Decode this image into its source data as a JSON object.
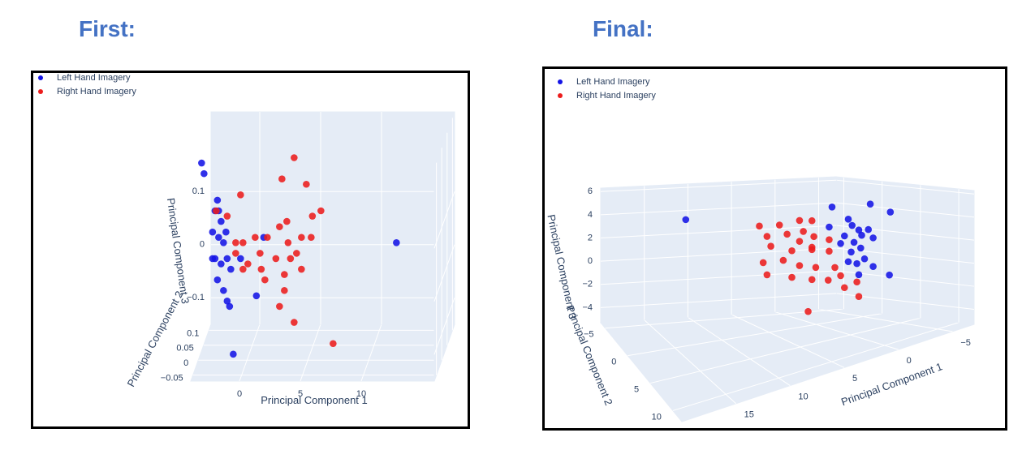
{
  "chart_data": [
    {
      "type": "scatter3d",
      "title": "First:",
      "legend": "top-left",
      "xlabel": "Principal Component 1",
      "ylabel": "Principal Component 2",
      "zlabel": "Principal Component 3",
      "xlim": [
        -4,
        16
      ],
      "ylim": [
        -0.07,
        0.12
      ],
      "zlim": [
        -0.15,
        0.25
      ],
      "xticks": [
        0,
        5,
        10
      ],
      "yticks": [
        {
          "value": -0.05,
          "label": "−0.05"
        },
        0,
        0.05,
        0.1
      ],
      "zticks": [
        {
          "value": -0.1,
          "label": "−0.1"
        },
        0,
        0.1
      ],
      "series": [
        {
          "name": "Left Hand Imagery",
          "color": "#1414e6",
          "x": [
            -3.9,
            -3.7,
            -2.6,
            -2.8,
            -2.3,
            -3.0,
            -2.5,
            -2.1,
            -2.8,
            -2.3,
            -1.8,
            -1.5,
            -2.6,
            -2.1,
            -1.8,
            -1.6,
            -1.3,
            0.6,
            -0.7,
            1.2,
            12.1,
            -3.0,
            -1.9,
            -2.5
          ],
          "y": [
            0.02,
            0.02,
            0.02,
            0.02,
            0.02,
            0.02,
            0.02,
            0.02,
            0.02,
            0.02,
            0.02,
            0.02,
            0.02,
            0.02,
            0.02,
            0.02,
            0.02,
            0.02,
            0.02,
            0.02,
            0.02,
            0.02,
            0.02,
            0.02
          ],
          "z": [
            0.21,
            0.19,
            0.14,
            0.12,
            0.1,
            0.08,
            0.07,
            0.06,
            0.03,
            0.02,
            0.03,
            0.01,
            -0.01,
            -0.03,
            -0.05,
            -0.06,
            -0.15,
            -0.04,
            0.03,
            0.07,
            0.06,
            0.03,
            0.08,
            0.12
          ]
        },
        {
          "name": "Right Hand Imagery",
          "color": "#ec1c1c",
          "x": [
            3.7,
            2.7,
            4.7,
            -0.7,
            -2.7,
            -1.8,
            3.1,
            5.2,
            5.9,
            2.5,
            4.3,
            5.1,
            0.5,
            1.5,
            -1.1,
            -0.5,
            3.2,
            3.9,
            0.9,
            2.2,
            3.4,
            4.3,
            -0.5,
            1.0,
            -1.1,
            2.9,
            1.3,
            2.9,
            2.5,
            3.7,
            6.9,
            -0.1
          ],
          "y": [
            0.02,
            0.02,
            0.02,
            0.02,
            0.02,
            0.02,
            0.02,
            0.02,
            0.02,
            0.02,
            0.02,
            0.02,
            0.02,
            0.02,
            0.02,
            0.02,
            0.02,
            0.02,
            0.02,
            0.02,
            0.02,
            0.02,
            0.02,
            0.02,
            0.02,
            0.02,
            0.02,
            0.02,
            0.02,
            0.02,
            0.02,
            0.02
          ],
          "z": [
            0.22,
            0.18,
            0.17,
            0.15,
            0.12,
            0.11,
            0.1,
            0.11,
            0.12,
            0.09,
            0.07,
            0.07,
            0.07,
            0.07,
            0.06,
            0.06,
            0.06,
            0.04,
            0.04,
            0.03,
            0.03,
            0.01,
            0.01,
            0.01,
            0.04,
            0,
            -0.01,
            -0.03,
            -0.06,
            -0.09,
            -0.13,
            0.02
          ]
        }
      ]
    },
    {
      "type": "scatter3d",
      "title": "Final:",
      "legend": "top-left",
      "xlabel": "Principal Component 1",
      "ylabel": "Principal Component 2",
      "zlabel": "Principal Component 3",
      "xlim": [
        -7,
        20
      ],
      "ylim": [
        -6,
        12
      ],
      "zlim": [
        -5.3,
        6.3
      ],
      "xticks": [
        {
          "value": -5,
          "label": "−5"
        },
        0,
        5,
        10,
        15
      ],
      "yticks": [
        {
          "value": -5,
          "label": "−5"
        },
        0,
        5,
        10
      ],
      "zticks": [
        {
          "value": -4,
          "label": "−4"
        },
        {
          "value": -2,
          "label": "−2"
        },
        0,
        2,
        4,
        6
      ],
      "series": [
        {
          "name": "Left Hand Imagery",
          "color": "#1414e6",
          "x": [
            -0.8,
            -2.5,
            -2.9,
            -3.6,
            -4.6,
            -5.1,
            -2.1,
            -3.1,
            -3.8,
            -2.8,
            -4.2,
            -3.4,
            -5.1,
            -1.7,
            -0.5,
            -4.8,
            -6.9,
            -6.8,
            14.5,
            -3.9,
            -2.5,
            -3.6
          ],
          "y": [
            1.2,
            1.2,
            1.2,
            1.2,
            1.2,
            1.2,
            1.2,
            1.2,
            1.2,
            1.2,
            1.2,
            1.2,
            1.2,
            1.2,
            1.2,
            1.2,
            1.2,
            1.2,
            1.2,
            1.2,
            1.2,
            1.2
          ],
          "z": [
            5.0,
            3.7,
            3.1,
            2.6,
            2.5,
            1.7,
            2.3,
            1.6,
            1.0,
            0.8,
            0,
            -0.3,
            -0.8,
            1.7,
            3.3,
            4.7,
            3.7,
            -1.8,
            6.0,
            2.1,
            0,
            -1.3
          ]
        },
        {
          "name": "Right Hand Imagery",
          "color": "#ec1c1c",
          "x": [
            6.8,
            4.7,
            2.6,
            1.3,
            6.0,
            3.9,
            2.2,
            1.1,
            -0.5,
            5.6,
            3.4,
            1.3,
            -0.5,
            6.4,
            4.3,
            2.6,
            0.9,
            -1.1,
            6.0,
            3.4,
            1.3,
            -0.4,
            -1.7,
            -3.4,
            -3.6,
            -2.1,
            1.7,
            1.3,
            2.6
          ],
          "y": [
            1.2,
            1.2,
            1.2,
            1.2,
            1.2,
            1.2,
            1.2,
            1.2,
            1.2,
            1.2,
            1.2,
            1.2,
            1.2,
            1.2,
            1.2,
            1.2,
            1.2,
            1.2,
            1.2,
            1.2,
            1.2,
            1.2,
            1.2,
            1.2,
            1.2,
            1.2,
            1.2,
            1.2,
            1.2
          ],
          "z": [
            4.4,
            4.2,
            4.3,
            4.1,
            3.4,
            3.3,
            3.3,
            2.7,
            2.2,
            2.5,
            1.8,
            1.8,
            1.2,
            1.2,
            1.1,
            0.4,
            0,
            -0.3,
            0.1,
            -0.5,
            -1.0,
            -1.3,
            -1.1,
            -1.9,
            -3.2,
            -2.2,
            -3.7,
            1.6,
            2.5
          ]
        }
      ]
    }
  ]
}
